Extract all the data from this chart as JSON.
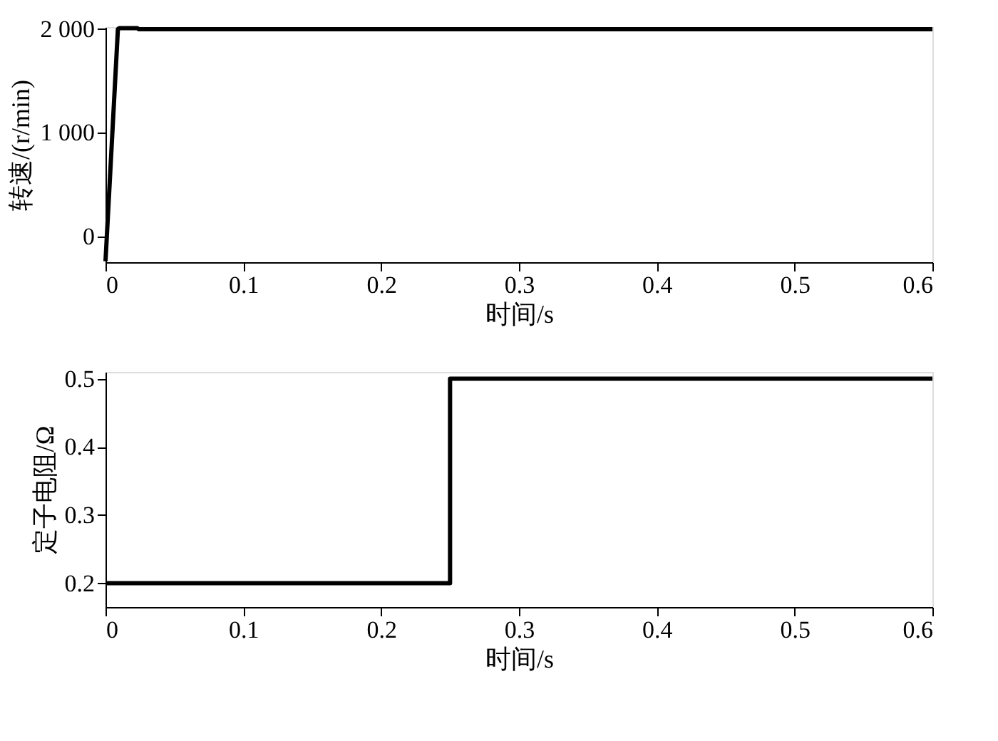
{
  "chart_data": [
    {
      "type": "line",
      "ylabel": "转速/(r/min)",
      "xlabel": "时间/s",
      "xlim": [
        0,
        0.6
      ],
      "xticks": [
        0,
        0.1,
        0.2,
        0.3,
        0.4,
        0.5,
        0.6
      ],
      "ylim": [
        -250,
        2020
      ],
      "yticks": [
        {
          "value": 0,
          "label": "0"
        },
        {
          "value": 1000,
          "label": "1 000"
        },
        {
          "value": 2000,
          "label": "2 000"
        }
      ],
      "grid": false,
      "marker": "none",
      "line_style": "solid",
      "series": [
        {
          "color": "#000000",
          "x": [
            0,
            0.009,
            0.01,
            0.023,
            0.024,
            0.6
          ],
          "values": [
            -240,
            2000,
            2010,
            2010,
            2000,
            2000
          ]
        }
      ]
    },
    {
      "type": "line",
      "ylabel": "定子电阻/Ω",
      "xlabel": "时间/s",
      "xlim": [
        0,
        0.6
      ],
      "xticks": [
        0,
        0.1,
        0.2,
        0.3,
        0.4,
        0.5,
        0.6
      ],
      "ylim": [
        0.165,
        0.51
      ],
      "yticks": [
        0.2,
        0.3,
        0.4,
        0.5
      ],
      "grid": false,
      "marker": "none",
      "line_style": "solid",
      "series": [
        {
          "color": "#000000",
          "x": [
            0,
            0.25,
            0.25,
            0.6
          ],
          "values": [
            0.2,
            0.2,
            0.5,
            0.5
          ]
        }
      ]
    }
  ]
}
